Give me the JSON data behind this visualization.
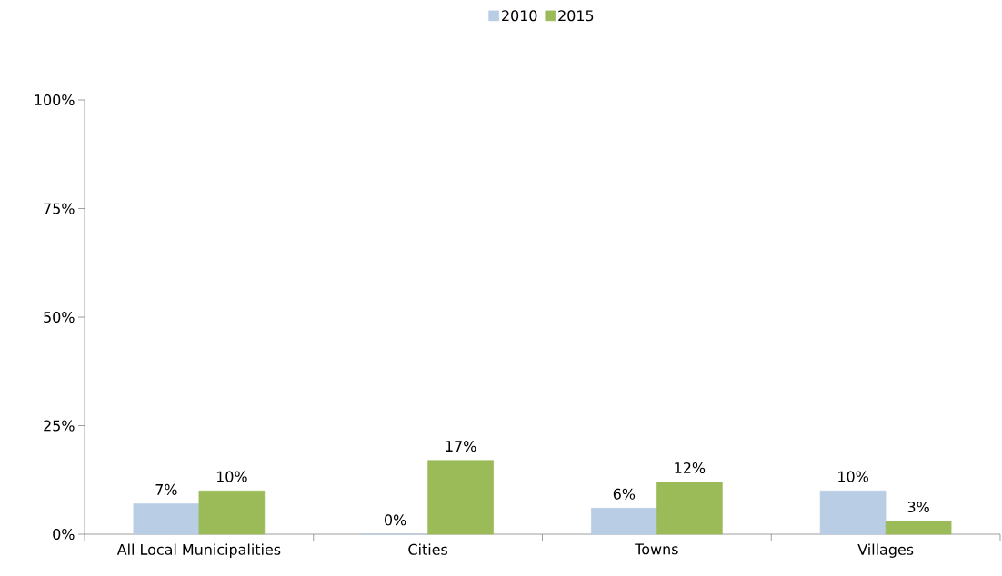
{
  "chart_data": {
    "type": "bar",
    "categories": [
      "All Local Municipalities",
      "Cities",
      "Towns",
      "Villages"
    ],
    "series": [
      {
        "name": "2010",
        "color": "#b9cde5",
        "values": [
          7,
          0,
          6,
          10
        ],
        "value_labels": [
          "7%",
          "0%",
          "6%",
          "10%"
        ]
      },
      {
        "name": "2015",
        "color": "#9bbb59",
        "values": [
          10,
          17,
          12,
          3
        ],
        "value_labels": [
          "10%",
          "17%",
          "12%",
          "3%"
        ]
      }
    ],
    "ylim": [
      0,
      100
    ],
    "yticks": [
      {
        "value": 0,
        "label": "0%"
      },
      {
        "value": 25,
        "label": "25%"
      },
      {
        "value": 50,
        "label": "50%"
      },
      {
        "value": 75,
        "label": "75%"
      },
      {
        "value": 100,
        "label": "100%"
      }
    ],
    "legend": "top"
  }
}
